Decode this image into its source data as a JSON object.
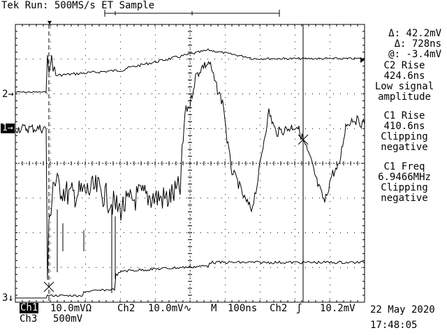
{
  "header": {
    "status": "Tek Run: 500MS/s ET Sample"
  },
  "cursor_readout": {
    "delta_v": "Δ: 42.2mV",
    "delta_t": "Δ: 728ns",
    "at_v": "@: -3.4mV"
  },
  "measurements": [
    {
      "name": "C2 Rise",
      "value": "424.6ns",
      "note1": "Low signal",
      "note2": "amplitude"
    },
    {
      "name": "C1 Rise",
      "value": "410.6ns",
      "note1": "Clipping",
      "note2": "negative"
    },
    {
      "name": "C1 Freq",
      "value": "6.9466MHz",
      "note1": "Clipping",
      "note2": "negative"
    }
  ],
  "channel_markers": {
    "ch2": "2→",
    "ch1": "1→",
    "ch3": "3↓"
  },
  "footer": {
    "ch1_label": "Ch1",
    "ch1_scale": "10.0mVΩ",
    "ch2_label": "Ch2",
    "ch2_scale": "10.0mV∿",
    "time_label": "M",
    "time_scale": "100ns",
    "trig_label": "Ch2",
    "trig_slope": "ʃ",
    "trig_level": "10.2mV",
    "ch3_label": "Ch3",
    "ch3_scale": "500mV",
    "date": "22 May 2020",
    "time": "17:48:05"
  },
  "colors": {
    "background": "#ffffff",
    "trace": "#000000",
    "grid": "#000000"
  }
}
